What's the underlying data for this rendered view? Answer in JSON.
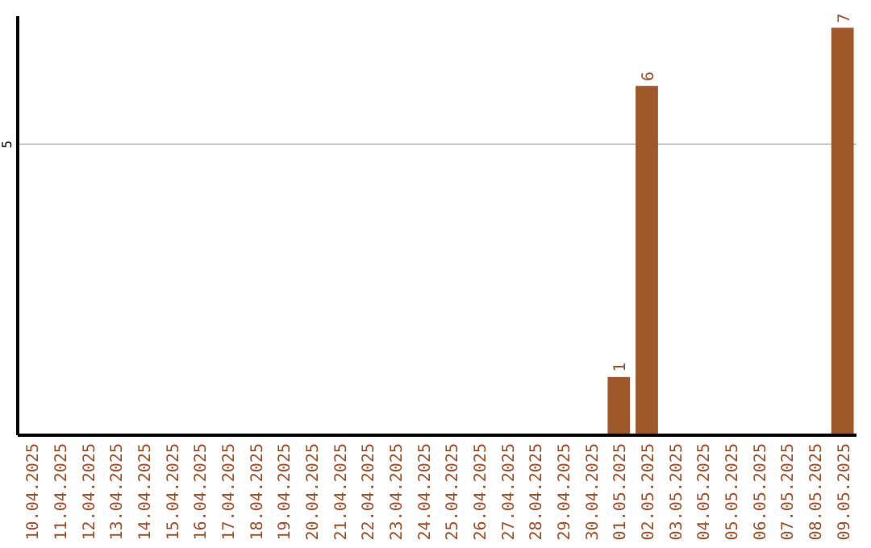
{
  "chart_data": {
    "type": "bar",
    "categories": [
      "10.04.2025",
      "11.04.2025",
      "12.04.2025",
      "13.04.2025",
      "14.04.2025",
      "15.04.2025",
      "16.04.2025",
      "17.04.2025",
      "18.04.2025",
      "19.04.2025",
      "20.04.2025",
      "21.04.2025",
      "22.04.2025",
      "23.04.2025",
      "24.04.2025",
      "25.04.2025",
      "26.04.2025",
      "27.04.2025",
      "28.04.2025",
      "29.04.2025",
      "30.04.2025",
      "01.05.2025",
      "02.05.2025",
      "03.05.2025",
      "04.05.2025",
      "05.05.2025",
      "06.05.2025",
      "07.05.2025",
      "08.05.2025",
      "09.05.2025"
    ],
    "values": [
      null,
      null,
      null,
      null,
      null,
      null,
      null,
      null,
      null,
      null,
      null,
      null,
      null,
      null,
      null,
      null,
      null,
      null,
      null,
      null,
      null,
      1,
      6,
      null,
      null,
      null,
      null,
      null,
      null,
      7
    ],
    "color": "#a0572a",
    "ylim": [
      0,
      7.2
    ],
    "yticks": [
      5
    ],
    "grid": "y",
    "data_labels": true
  }
}
